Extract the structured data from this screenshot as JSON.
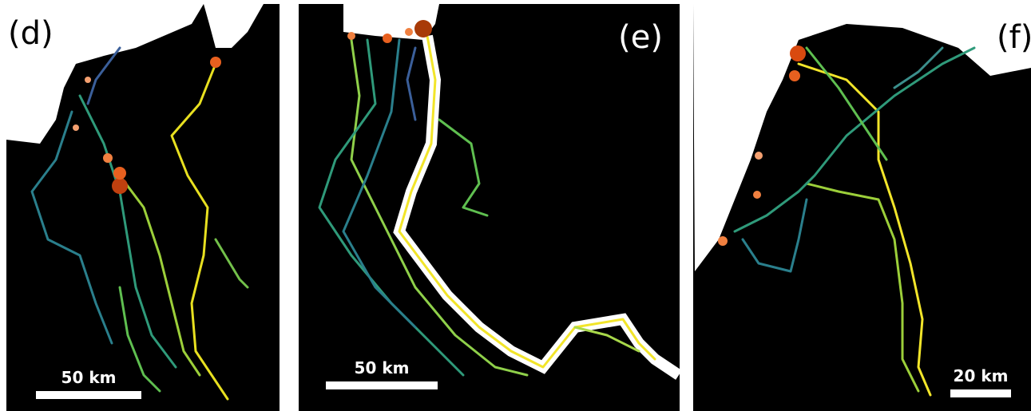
{
  "panels": [
    {
      "label": "(d)",
      "scale_bar": "50 km"
    },
    {
      "label": "(e)",
      "scale_bar": "50 km"
    },
    {
      "label": "(f)",
      "scale_bar": "20 km"
    }
  ]
}
